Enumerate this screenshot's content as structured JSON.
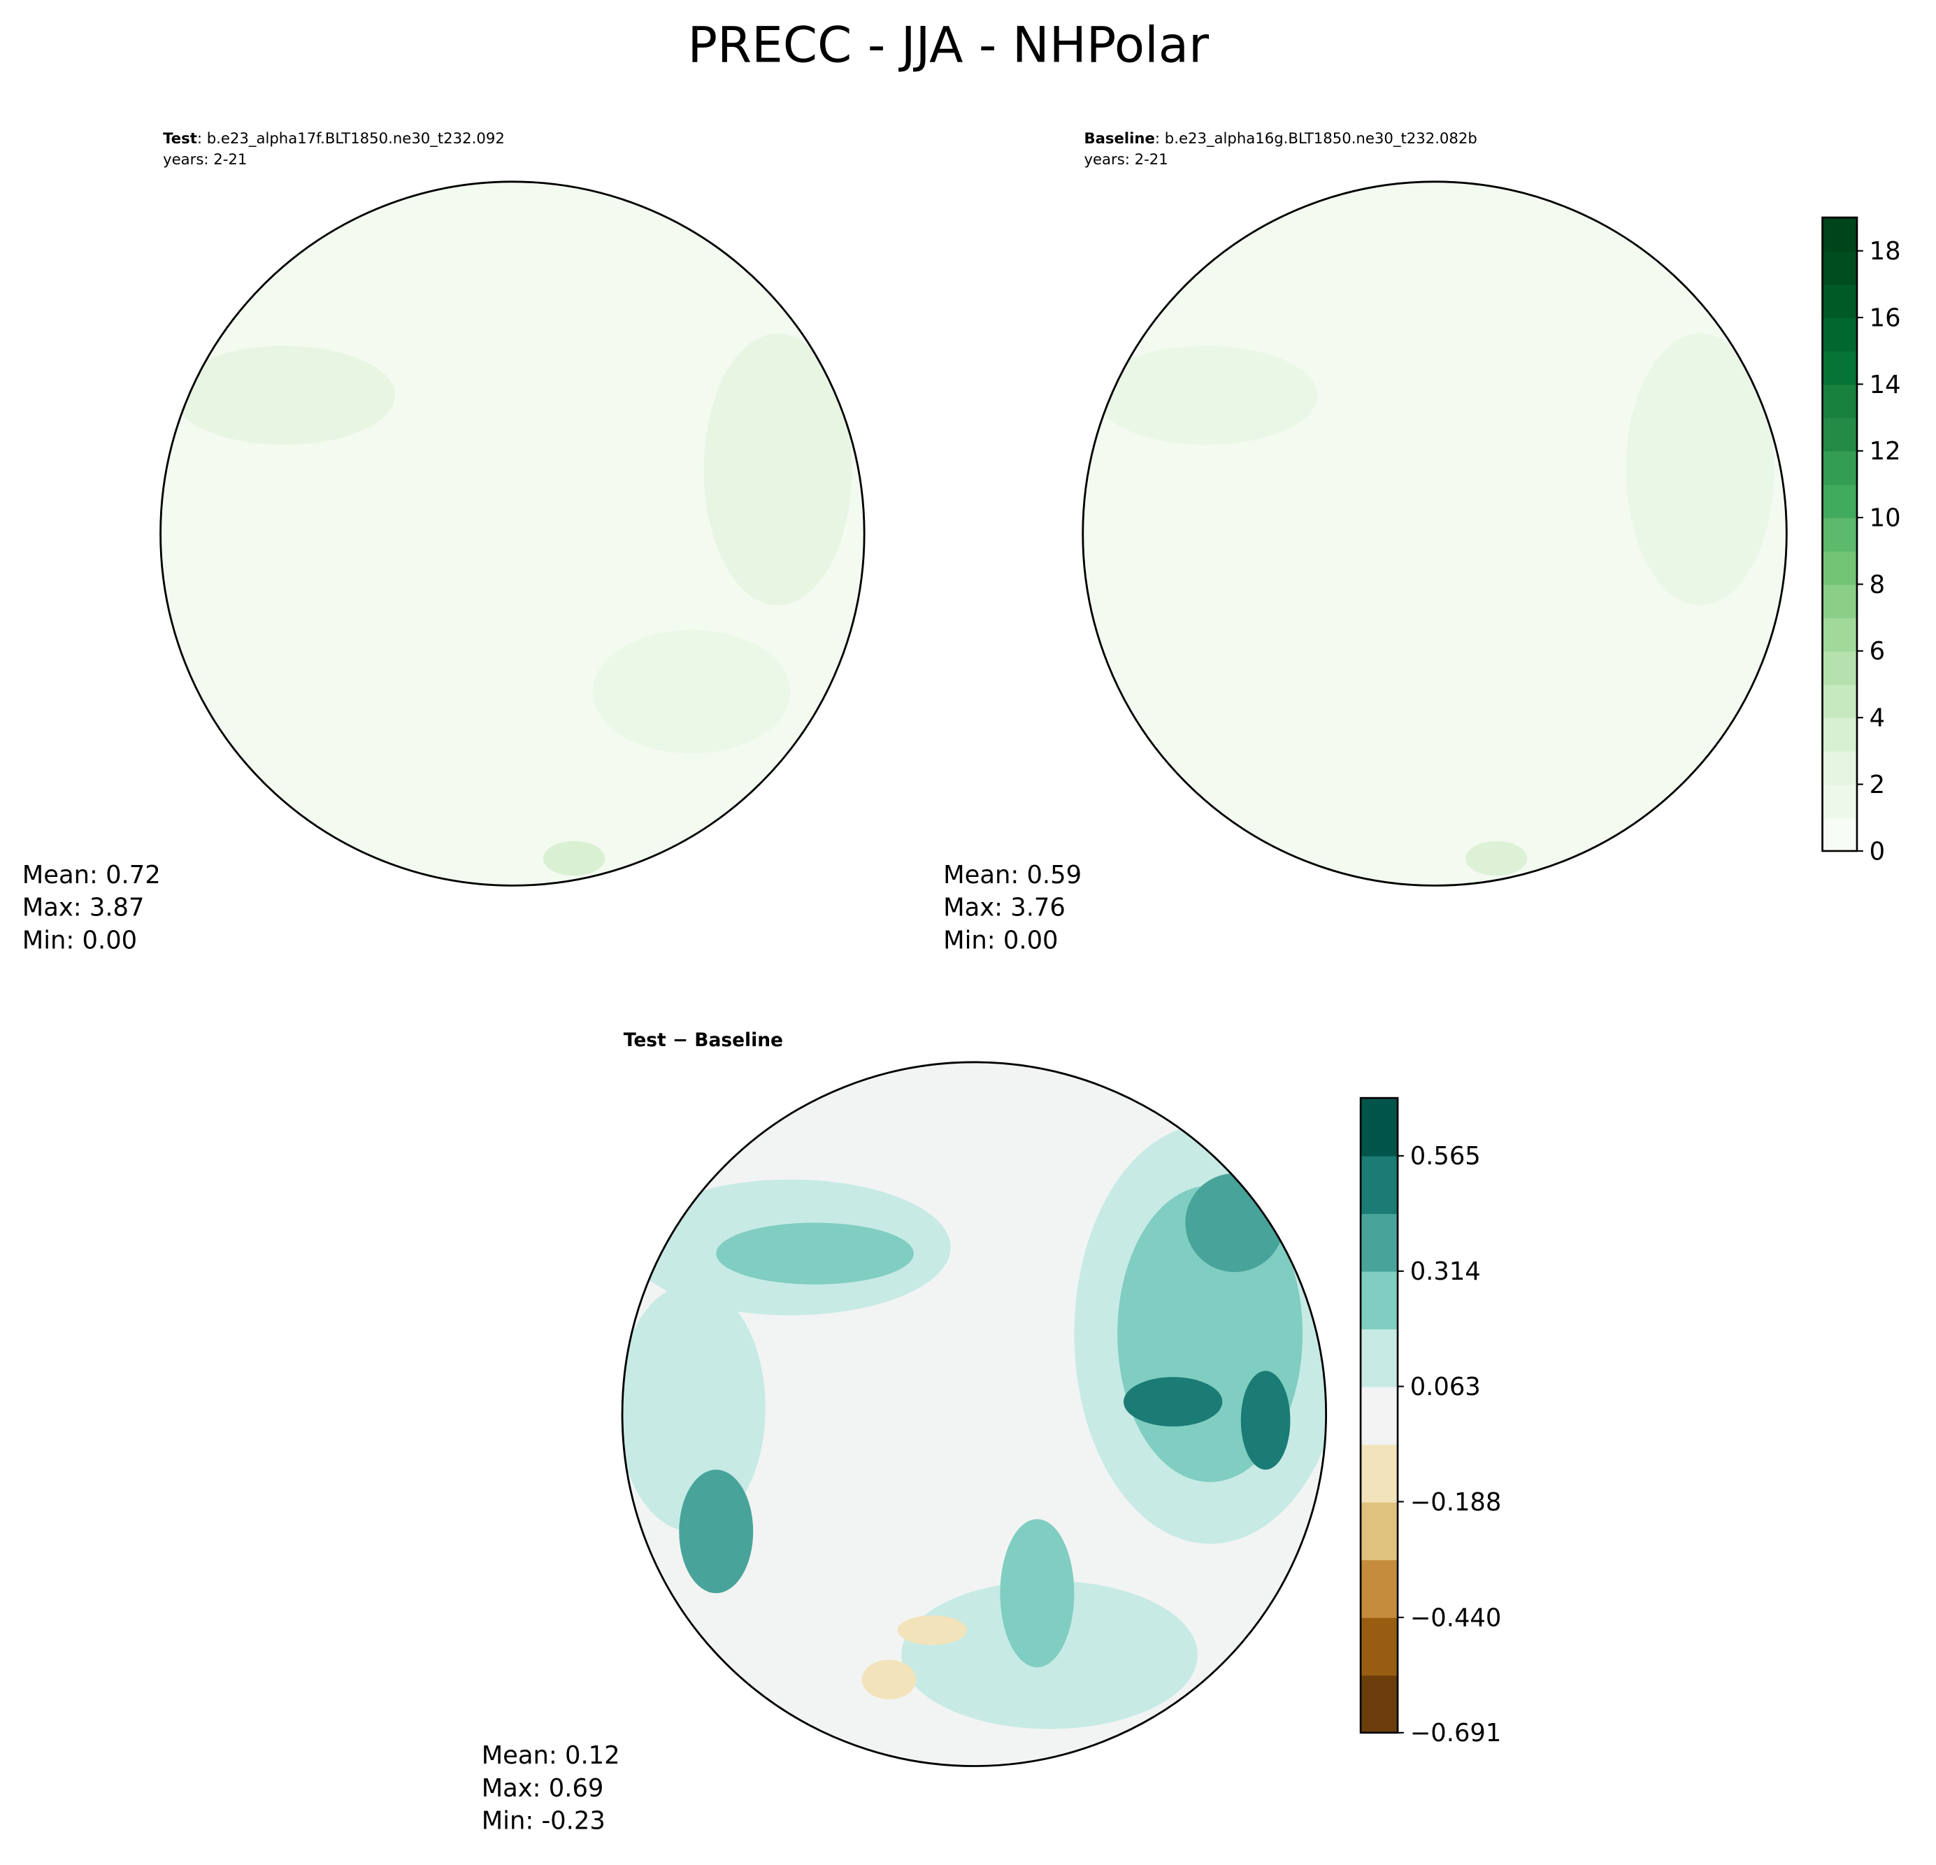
{
  "title": "PRECC - JJA - NHPolar",
  "panels": [
    {
      "case_label": "Test",
      "case_name": ": b.e23_alpha17f.BLT1850.ne30_t232.092",
      "years": "years: 2-21",
      "stats": [
        "Mean:  0.72",
        "Max:  3.87",
        "Min:  0.00"
      ]
    },
    {
      "case_label": "Baseline",
      "case_name": ": b.e23_alpha16g.BLT1850.ne30_t232.082b",
      "years": "years: 2-21",
      "stats": [
        "Mean:  0.59",
        "Max:  3.76",
        "Min:  0.00"
      ]
    },
    {
      "title": "Test − Baseline",
      "stats": [
        "Mean:  0.12",
        "Max:  0.69",
        "Min: -0.23"
      ]
    }
  ],
  "colorbars": [
    {
      "lim": [
        0,
        19
      ],
      "ticks": [
        0,
        2,
        4,
        6,
        8,
        10,
        12,
        14,
        16,
        18
      ],
      "colors": [
        "#f7fcf5",
        "#eef8ea",
        "#e5f5e0",
        "#d8f0d2",
        "#c7e9c0",
        "#b4e1ad",
        "#a1d99b",
        "#8ace88",
        "#74c476",
        "#5db96b",
        "#41ab5d",
        "#339e53",
        "#238b45",
        "#17813d",
        "#067435",
        "#00682f",
        "#005a26",
        "#004d20",
        "#00441b"
      ]
    },
    {
      "lim": [
        -0.691,
        0.691
      ],
      "ticks": [
        {
          "value": -0.691,
          "label": "−0.691"
        },
        {
          "value": -0.44,
          "label": "−0.440"
        },
        {
          "value": -0.188,
          "label": "−0.188"
        },
        0.063,
        0.314,
        0.565
      ],
      "colors": [
        "#6b3d0a",
        "#995d12",
        "#c48c3c",
        "#dfc27d",
        "#f2e3bb",
        "#f2f3f2",
        "#c7eae5",
        "#80cdc1",
        "#48a49a",
        "#1a7c74",
        "#01544a"
      ]
    }
  ]
}
